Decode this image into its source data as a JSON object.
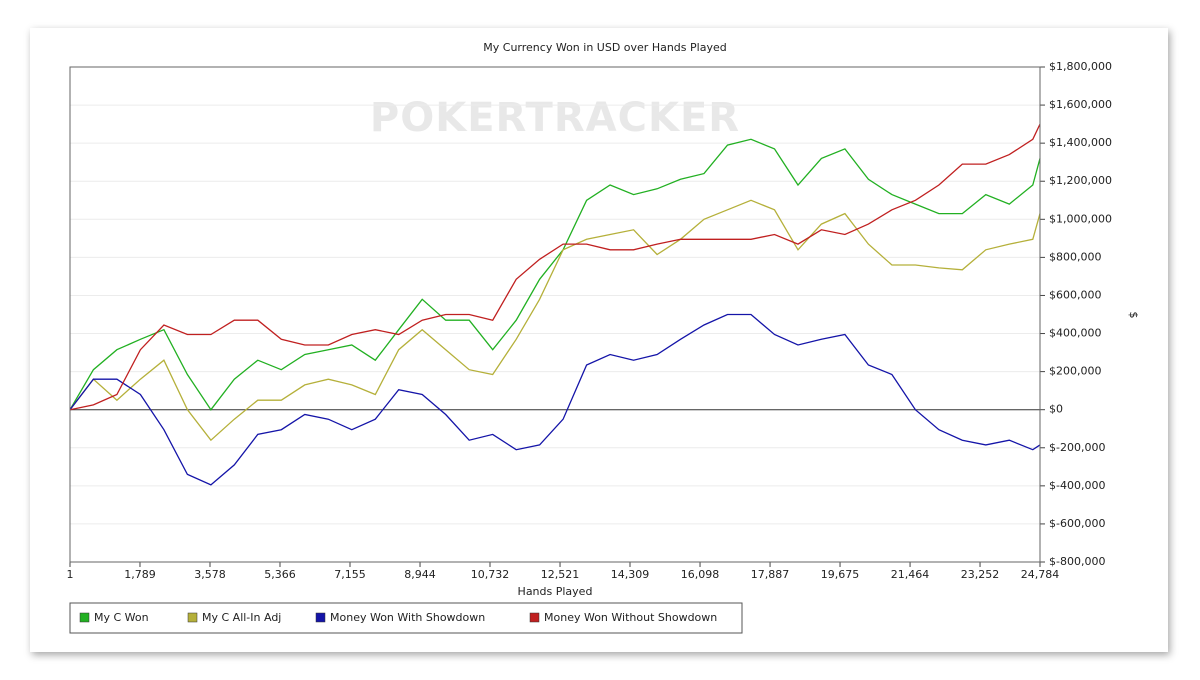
{
  "chart_data": {
    "type": "line",
    "title": "My Currency Won in USD over Hands Played",
    "watermark": "POKERTRACKER",
    "x_label": "Hands Played",
    "y_label": "$",
    "x": [
      1,
      600,
      1200,
      1800,
      2400,
      3000,
      3600,
      4200,
      4800,
      5400,
      6000,
      6600,
      7200,
      7800,
      8400,
      9000,
      9600,
      10200,
      10800,
      11400,
      12000,
      12600,
      13200,
      13800,
      14400,
      15000,
      15600,
      16200,
      16800,
      17400,
      18000,
      18600,
      19200,
      19800,
      20400,
      21000,
      21600,
      22200,
      22800,
      23400,
      24000,
      24600,
      24784
    ],
    "series": [
      {
        "name": "My C Won",
        "color": "#22b022",
        "values": [
          0,
          210000,
          315000,
          370000,
          420000,
          185000,
          0,
          160000,
          260000,
          210000,
          290000,
          315000,
          340000,
          260000,
          420000,
          580000,
          470000,
          470000,
          315000,
          470000,
          685000,
          840000,
          1100000,
          1180000,
          1130000,
          1160000,
          1210000,
          1240000,
          1390000,
          1420000,
          1370000,
          1180000,
          1320000,
          1370000,
          1210000,
          1130000,
          1080000,
          1030000,
          1030000,
          1130000,
          1080000,
          1180000,
          1320000
        ]
      },
      {
        "name": "My C All-In Adj",
        "color": "#b5b03a",
        "values": [
          0,
          160000,
          50000,
          160000,
          260000,
          0,
          -160000,
          -50000,
          50000,
          50000,
          130000,
          160000,
          130000,
          80000,
          315000,
          420000,
          315000,
          210000,
          185000,
          370000,
          580000,
          840000,
          895000,
          920000,
          945000,
          815000,
          895000,
          1000000,
          1050000,
          1100000,
          1050000,
          840000,
          975000,
          1030000,
          870000,
          760000,
          760000,
          745000,
          735000,
          840000,
          870000,
          895000,
          1030000
        ]
      },
      {
        "name": "Money Won With Showdown",
        "color": "#1414a8",
        "values": [
          0,
          160000,
          160000,
          80000,
          -105000,
          -340000,
          -395000,
          -290000,
          -130000,
          -105000,
          -25000,
          -50000,
          -105000,
          -50000,
          105000,
          80000,
          -25000,
          -160000,
          -130000,
          -210000,
          -185000,
          -50000,
          235000,
          290000,
          260000,
          290000,
          370000,
          445000,
          500000,
          500000,
          395000,
          340000,
          370000,
          395000,
          235000,
          185000,
          0,
          -105000,
          -160000,
          -185000,
          -160000,
          -210000,
          -185000
        ]
      },
      {
        "name": "Money Won Without Showdown",
        "color": "#c02020",
        "values": [
          0,
          25000,
          80000,
          315000,
          445000,
          395000,
          395000,
          470000,
          470000,
          370000,
          340000,
          340000,
          395000,
          420000,
          395000,
          470000,
          500000,
          500000,
          470000,
          685000,
          790000,
          870000,
          870000,
          840000,
          840000,
          870000,
          895000,
          895000,
          895000,
          895000,
          920000,
          870000,
          945000,
          920000,
          975000,
          1050000,
          1100000,
          1180000,
          1290000,
          1290000,
          1340000,
          1420000,
          1500000
        ]
      }
    ],
    "xlim": [
      1,
      24784
    ],
    "xticks": [
      1,
      {
        "value": 1789,
        "label": "1,789"
      },
      {
        "value": 3578,
        "label": "3,578"
      },
      {
        "value": 5366,
        "label": "5,366"
      },
      {
        "value": 7155,
        "label": "7,155"
      },
      {
        "value": 8944,
        "label": "8,944"
      },
      {
        "value": 10732,
        "label": "10,732"
      },
      {
        "value": 12521,
        "label": "12,521"
      },
      {
        "value": 14309,
        "label": "14,309"
      },
      {
        "value": 16098,
        "label": "16,098"
      },
      {
        "value": 17887,
        "label": "17,887"
      },
      {
        "value": 19675,
        "label": "19,675"
      },
      {
        "value": 21464,
        "label": "21,464"
      },
      {
        "value": 23252,
        "label": "23,252"
      },
      {
        "value": 24784,
        "label": "24,784"
      }
    ],
    "ylim": [
      -800000,
      1800000
    ],
    "yticks": [
      {
        "value": -800000,
        "label": "$-800,000"
      },
      {
        "value": -600000,
        "label": "$-600,000"
      },
      {
        "value": -400000,
        "label": "$-400,000"
      },
      {
        "value": -200000,
        "label": "$-200,000"
      },
      {
        "value": 0,
        "label": "$0"
      },
      {
        "value": 200000,
        "label": "$200,000"
      },
      {
        "value": 400000,
        "label": "$400,000"
      },
      {
        "value": 600000,
        "label": "$600,000"
      },
      {
        "value": 800000,
        "label": "$800,000"
      },
      {
        "value": 1000000,
        "label": "$1,000,000"
      },
      {
        "value": 1200000,
        "label": "$1,200,000"
      },
      {
        "value": 1400000,
        "label": "$1,400,000"
      },
      {
        "value": 1600000,
        "label": "$1,600,000"
      },
      {
        "value": 1800000,
        "label": "$1,800,000"
      }
    ],
    "grid": true,
    "legend": "bottom-left"
  }
}
